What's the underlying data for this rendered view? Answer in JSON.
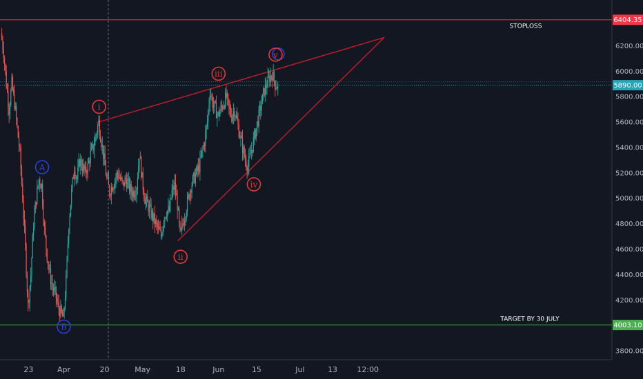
{
  "chart_data": {
    "type": "candlestick",
    "grid": false,
    "colors": {
      "background": "#131722",
      "up": "#26a69a",
      "down": "#ef5350",
      "text": "#b2b5be",
      "axis_line": "#363a45",
      "stoploss": "#f23645",
      "target": "#4caf50",
      "current": "#2aa3b8",
      "trend": "#c41e2a",
      "wave_red": "#e53935",
      "wave_blue": "#2e3fd6"
    },
    "y_axis": {
      "ticks": [
        "3800.00",
        "4000.00",
        "4200.00",
        "4400.00",
        "4600.00",
        "4800.00",
        "5000.00",
        "5200.00",
        "5400.00",
        "5600.00",
        "5800.00",
        "6000.00",
        "6200.00"
      ],
      "ylim": [
        3730,
        6560
      ]
    },
    "x_axis": {
      "ticks": [
        "23",
        "Apr",
        "20",
        "May",
        "18",
        "Jun",
        "15",
        "Jul",
        "13",
        "12:00"
      ],
      "tick_dates": [
        "2019-03-23",
        "2019-04-05",
        "2019-04-20",
        "2019-05-04",
        "2019-05-18",
        "2019-06-01",
        "2019-06-15",
        "2019-07-01",
        "2019-07-13",
        "2019-07-26"
      ]
    },
    "levels": {
      "stoploss": {
        "value": 6404.35,
        "label": "6404.35",
        "annotation": "STOPLOSS"
      },
      "target": {
        "value": 4003.1,
        "label": "4003.10",
        "annotation": "TARGET BY 30 JULY"
      },
      "current": {
        "value": 5890.0,
        "label": "5890.00"
      }
    },
    "trendlines": [
      {
        "from": {
          "date": "2019-04-17",
          "price": 5595
        },
        "to": {
          "date": "2019-08-01",
          "price": 6265
        }
      },
      {
        "from": {
          "date": "2019-05-17",
          "price": 4665
        },
        "to": {
          "date": "2019-08-01",
          "price": 6265
        }
      }
    ],
    "wave_labels": [
      {
        "text": "A",
        "color": "blue",
        "date": "2019-03-28",
        "price": 5245
      },
      {
        "text": "B",
        "color": "blue",
        "date": "2019-04-05",
        "price": 3990
      },
      {
        "text": "i",
        "color": "red",
        "date": "2019-04-18",
        "price": 5720
      },
      {
        "text": "ii",
        "color": "red",
        "date": "2019-05-18",
        "price": 4540
      },
      {
        "text": "iii",
        "color": "red",
        "date": "2019-06-01",
        "price": 5980
      },
      {
        "text": "iv",
        "color": "red",
        "date": "2019-06-14",
        "price": 5110
      },
      {
        "text": "v",
        "color": "red",
        "date": "2019-06-22",
        "price": 6130
      }
    ],
    "price_path": [
      [
        "2019-03-13",
        6300
      ],
      [
        "2019-03-14",
        6150
      ],
      [
        "2019-03-15",
        5900
      ],
      [
        "2019-03-16",
        5700
      ],
      [
        "2019-03-17",
        5900
      ],
      [
        "2019-03-18",
        5750
      ],
      [
        "2019-03-19",
        5550
      ],
      [
        "2019-03-20",
        5350
      ],
      [
        "2019-03-21",
        5000
      ],
      [
        "2019-03-22",
        4600
      ],
      [
        "2019-03-23",
        4150
      ],
      [
        "2019-03-24",
        4400
      ],
      [
        "2019-03-25",
        4800
      ],
      [
        "2019-03-26",
        5000
      ],
      [
        "2019-03-27",
        5150
      ],
      [
        "2019-03-28",
        5100
      ],
      [
        "2019-03-29",
        4750
      ],
      [
        "2019-03-30",
        4550
      ],
      [
        "2019-03-31",
        4400
      ],
      [
        "2019-04-01",
        4300
      ],
      [
        "2019-04-02",
        4250
      ],
      [
        "2019-04-03",
        4150
      ],
      [
        "2019-04-04",
        4100
      ],
      [
        "2019-04-05",
        4050
      ],
      [
        "2019-04-06",
        4350
      ],
      [
        "2019-04-07",
        4800
      ],
      [
        "2019-04-08",
        5050
      ],
      [
        "2019-04-09",
        5250
      ],
      [
        "2019-04-10",
        5150
      ],
      [
        "2019-04-11",
        5300
      ],
      [
        "2019-04-12",
        5250
      ],
      [
        "2019-04-13",
        5200
      ],
      [
        "2019-04-14",
        5250
      ],
      [
        "2019-04-15",
        5350
      ],
      [
        "2019-04-16",
        5400
      ],
      [
        "2019-04-17",
        5500
      ],
      [
        "2019-04-18",
        5600
      ],
      [
        "2019-04-19",
        5450
      ],
      [
        "2019-04-20",
        5300
      ],
      [
        "2019-04-21",
        5150
      ],
      [
        "2019-04-22",
        5050
      ],
      [
        "2019-04-23",
        5100
      ],
      [
        "2019-04-24",
        5150
      ],
      [
        "2019-04-25",
        5200
      ],
      [
        "2019-04-26",
        5150
      ],
      [
        "2019-04-27",
        5100
      ],
      [
        "2019-04-28",
        5150
      ],
      [
        "2019-04-29",
        5100
      ],
      [
        "2019-04-30",
        5050
      ],
      [
        "2019-05-01",
        5050
      ],
      [
        "2019-05-02",
        5100
      ],
      [
        "2019-05-03",
        5350
      ],
      [
        "2019-05-04",
        5150
      ],
      [
        "2019-05-05",
        5000
      ],
      [
        "2019-05-06",
        4950
      ],
      [
        "2019-05-07",
        4900
      ],
      [
        "2019-05-08",
        4850
      ],
      [
        "2019-05-09",
        4800
      ],
      [
        "2019-05-10",
        4750
      ],
      [
        "2019-05-11",
        4700
      ],
      [
        "2019-05-12",
        4850
      ],
      [
        "2019-05-13",
        4900
      ],
      [
        "2019-05-14",
        4900
      ],
      [
        "2019-05-15",
        5050
      ],
      [
        "2019-05-16",
        5100
      ],
      [
        "2019-05-17",
        4950
      ],
      [
        "2019-05-18",
        4700
      ],
      [
        "2019-05-19",
        4800
      ],
      [
        "2019-05-20",
        4900
      ],
      [
        "2019-05-21",
        5000
      ],
      [
        "2019-05-22",
        5100
      ],
      [
        "2019-05-23",
        5150
      ],
      [
        "2019-05-24",
        5200
      ],
      [
        "2019-05-25",
        5250
      ],
      [
        "2019-05-26",
        5350
      ],
      [
        "2019-05-27",
        5450
      ],
      [
        "2019-05-28",
        5600
      ],
      [
        "2019-05-29",
        5850
      ],
      [
        "2019-05-30",
        5750
      ],
      [
        "2019-05-31",
        5700
      ],
      [
        "2019-06-01",
        5650
      ],
      [
        "2019-06-02",
        5700
      ],
      [
        "2019-06-03",
        5750
      ],
      [
        "2019-06-04",
        5800
      ],
      [
        "2019-06-05",
        5700
      ],
      [
        "2019-06-06",
        5650
      ],
      [
        "2019-06-07",
        5700
      ],
      [
        "2019-06-08",
        5600
      ],
      [
        "2019-06-09",
        5500
      ],
      [
        "2019-06-10",
        5400
      ],
      [
        "2019-06-11",
        5300
      ],
      [
        "2019-06-12",
        5250
      ],
      [
        "2019-06-13",
        5350
      ],
      [
        "2019-06-14",
        5450
      ],
      [
        "2019-06-15",
        5550
      ],
      [
        "2019-06-16",
        5650
      ],
      [
        "2019-06-17",
        5750
      ],
      [
        "2019-06-18",
        5850
      ],
      [
        "2019-06-19",
        5900
      ],
      [
        "2019-06-20",
        5950
      ],
      [
        "2019-06-21",
        5980
      ],
      [
        "2019-06-22",
        5900
      ],
      [
        "2019-06-23",
        5880
      ]
    ]
  }
}
